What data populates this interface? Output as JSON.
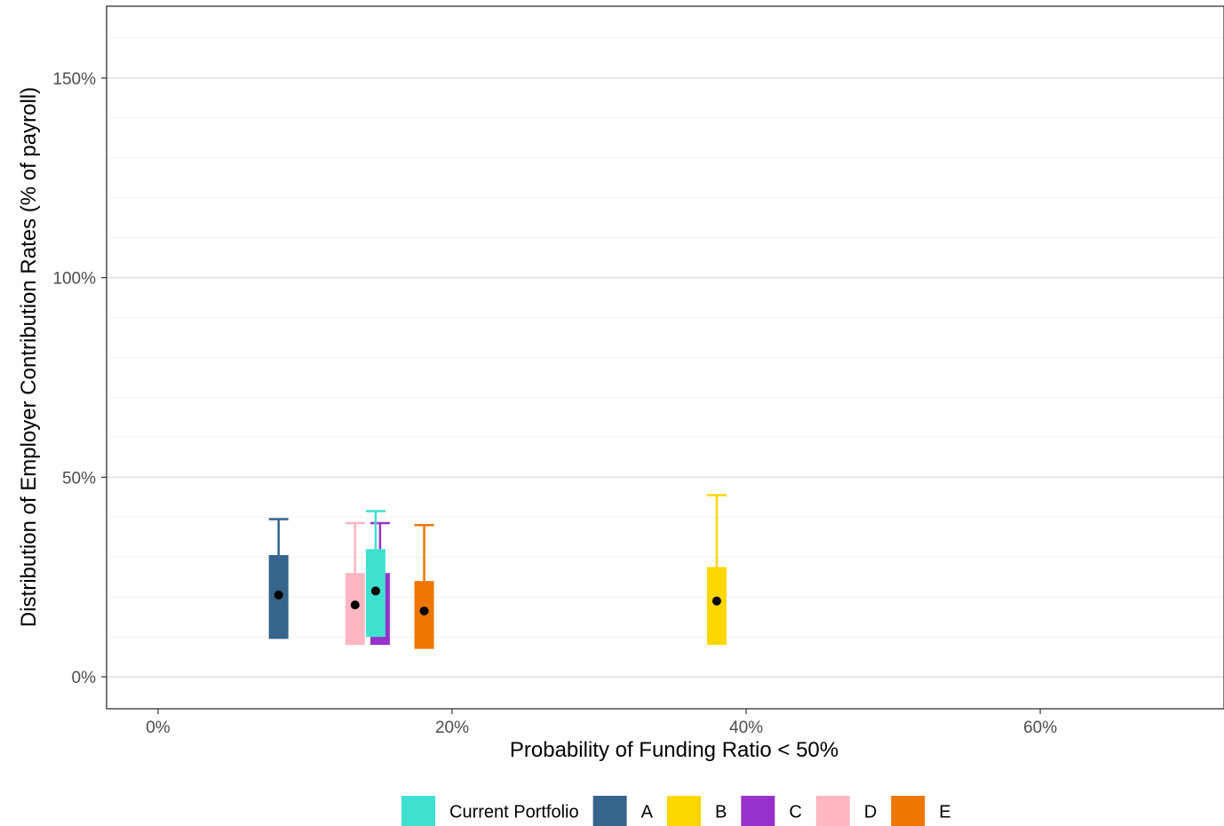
{
  "chart_data": {
    "type": "boxplot",
    "xlabel": "Probability of Funding Ratio < 50%",
    "ylabel": "Distribution of Employer Contribution Rates (% of payroll)",
    "xlim": [
      -3.5,
      72.5
    ],
    "ylim": [
      -8,
      168
    ],
    "x_ticks": [
      {
        "value": 0,
        "label": "0%"
      },
      {
        "value": 20,
        "label": "20%"
      },
      {
        "value": 40,
        "label": "40%"
      },
      {
        "value": 60,
        "label": "60%"
      }
    ],
    "y_ticks": [
      {
        "value": 0,
        "label": "0%"
      },
      {
        "value": 50,
        "label": "50%"
      },
      {
        "value": 100,
        "label": "100%"
      },
      {
        "value": 150,
        "label": "150%"
      }
    ],
    "y_minor_grid": [
      10,
      20,
      30,
      40,
      60,
      70,
      80,
      90,
      110,
      120,
      130,
      140,
      160
    ],
    "grid": true,
    "legend_position": "bottom",
    "series": [
      {
        "name": "A",
        "color": "#35648c",
        "x": 8.2,
        "lower": 9.5,
        "upper": 30.5,
        "whisker_high": 39.5,
        "mean": 20.5
      },
      {
        "name": "D",
        "color": "#ffb6c1",
        "x": 13.4,
        "lower": 8.0,
        "upper": 26.0,
        "whisker_high": 38.5,
        "mean": 18.0
      },
      {
        "name": "C",
        "color": "#9932cc",
        "x": 15.1,
        "lower": 8.0,
        "upper": 26.0,
        "whisker_high": 38.5,
        "mean": 18.0
      },
      {
        "name": "Current Portfolio",
        "color": "#40e0d0",
        "x": 14.8,
        "lower": 10.0,
        "upper": 32.0,
        "whisker_high": 41.5,
        "mean": 21.5
      },
      {
        "name": "E",
        "color": "#ee7600",
        "x": 18.1,
        "lower": 7.0,
        "upper": 24.0,
        "whisker_high": 38.0,
        "mean": 16.5
      },
      {
        "name": "B",
        "color": "#ffd700",
        "x": 38.0,
        "lower": 8.0,
        "upper": 27.5,
        "whisker_high": 45.5,
        "mean": 19.0
      }
    ],
    "legend": [
      {
        "label": "Current Portfolio",
        "color": "#40e0d0"
      },
      {
        "label": "A",
        "color": "#35648c"
      },
      {
        "label": "B",
        "color": "#ffd700"
      },
      {
        "label": "C",
        "color": "#9932cc"
      },
      {
        "label": "D",
        "color": "#ffb6c1"
      },
      {
        "label": "E",
        "color": "#ee7600"
      }
    ]
  }
}
